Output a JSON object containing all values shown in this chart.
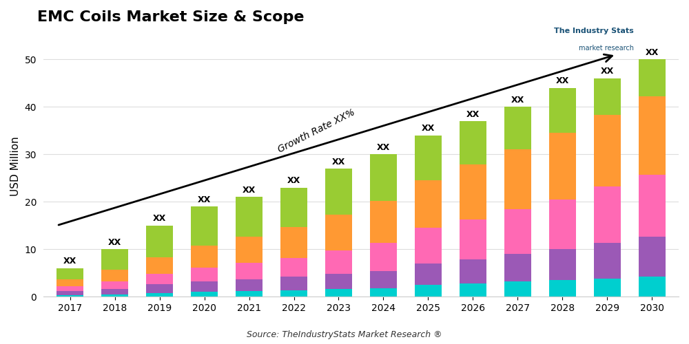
{
  "title": "EMC Coils Market Size & Scope",
  "source_text": "Source: TheIndustryStats Market Research ®",
  "ylabel": "USD Million",
  "years": [
    2017,
    2018,
    2019,
    2020,
    2021,
    2022,
    2023,
    2024,
    2025,
    2026,
    2027,
    2028,
    2029,
    2030
  ],
  "totals": [
    6,
    10,
    15,
    19,
    21,
    23,
    27,
    30,
    34,
    37,
    40,
    44,
    46,
    50
  ],
  "segments": {
    "cyan": [
      0.4,
      0.5,
      0.8,
      1.0,
      1.2,
      1.4,
      1.6,
      1.8,
      2.5,
      2.8,
      3.2,
      3.5,
      3.8,
      4.2
    ],
    "purple": [
      0.8,
      1.2,
      1.8,
      2.2,
      2.5,
      2.8,
      3.2,
      3.6,
      4.5,
      5.0,
      5.8,
      6.5,
      7.5,
      8.5
    ],
    "magenta": [
      1.0,
      1.5,
      2.2,
      3.0,
      3.5,
      4.0,
      5.0,
      6.0,
      7.5,
      8.5,
      9.5,
      10.5,
      12.0,
      13.0
    ],
    "orange": [
      1.5,
      2.5,
      3.5,
      4.5,
      5.5,
      6.5,
      7.5,
      8.8,
      10.0,
      11.5,
      12.5,
      14.0,
      15.0,
      16.5
    ],
    "green": [
      2.3,
      4.3,
      6.7,
      8.3,
      8.3,
      8.3,
      9.7,
      9.8,
      9.5,
      9.2,
      9.0,
      9.5,
      7.7,
      7.8
    ]
  },
  "colors": {
    "cyan": "#00CFCF",
    "purple": "#9B59B6",
    "magenta": "#FF69B4",
    "orange": "#FF9933",
    "green": "#99CC33"
  },
  "ylim": [
    0,
    55
  ],
  "yticks": [
    0,
    10,
    20,
    30,
    40,
    50
  ],
  "annotation_label": "Growth Rate XX%",
  "bar_label": "XX",
  "title_fontsize": 16,
  "axis_fontsize": 11,
  "tick_fontsize": 10,
  "background_color": "#ffffff"
}
